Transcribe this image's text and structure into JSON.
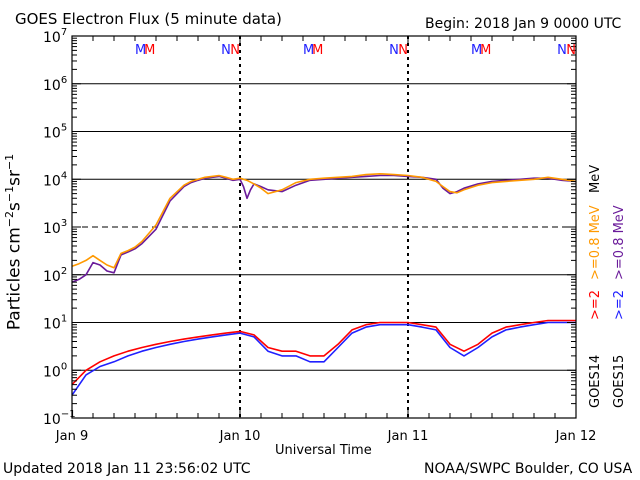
{
  "header": {
    "title": "GOES Electron Flux (5 minute data)",
    "begin": "Begin: 2018 Jan 9 0000 UTC"
  },
  "footer": {
    "updated": "Updated 2018 Jan 11 23:56:02 UTC",
    "credit": "NOAA/SWPC Boulder, CO USA"
  },
  "chart_data": {
    "type": "line",
    "title": "GOES Electron Flux (5 minute data)",
    "xlabel": "Universal Time",
    "ylabel": "Particles cm-2s-1sr-1",
    "y_scale": "log",
    "ylim": [
      0.1,
      10000000
    ],
    "y_ticks": [
      "10-1",
      "100",
      "101",
      "102",
      "103",
      "104",
      "105",
      "106",
      "107"
    ],
    "x_unit": "hours since 2018 Jan 9 0000 UTC",
    "xlim": [
      0,
      72
    ],
    "x_ticks": [
      {
        "label": "Jan 9",
        "x": 0
      },
      {
        "label": "Jan 10",
        "x": 24
      },
      {
        "label": "Jan 11",
        "x": 48
      },
      {
        "label": "Jan 12",
        "x": 72
      }
    ],
    "threshold_line": 1000,
    "top_markers": [
      {
        "text": "M",
        "color": "#2020ff",
        "x": 9.8
      },
      {
        "text": "M",
        "color": "#ff0000",
        "x": 11.1
      },
      {
        "text": "N",
        "color": "#2020ff",
        "x": 22.0
      },
      {
        "text": "N",
        "color": "#ff0000",
        "x": 23.3
      },
      {
        "text": "M",
        "color": "#2020ff",
        "x": 33.8
      },
      {
        "text": "M",
        "color": "#ff0000",
        "x": 35.1
      },
      {
        "text": "N",
        "color": "#2020ff",
        "x": 46.0
      },
      {
        "text": "N",
        "color": "#ff0000",
        "x": 47.3
      },
      {
        "text": "M",
        "color": "#2020ff",
        "x": 57.8
      },
      {
        "text": "M",
        "color": "#ff0000",
        "x": 59.1
      },
      {
        "text": "N",
        "color": "#2020ff",
        "x": 70.0
      },
      {
        "text": "N",
        "color": "#ff0000",
        "x": 71.3
      }
    ],
    "series": [
      {
        "name": "GOES15 >=0.8 MeV",
        "color": "#6a1b9a",
        "x": [
          0,
          1,
          2,
          3,
          4,
          5,
          6,
          7,
          8,
          9,
          10,
          12,
          14,
          16,
          17,
          18,
          19,
          20,
          21,
          22,
          23,
          24,
          24.5,
          25,
          25.5,
          26,
          26.5,
          27,
          28,
          30,
          32,
          34,
          36,
          38,
          40,
          42,
          44,
          46,
          48,
          50,
          52,
          53,
          54,
          55,
          56,
          58,
          60,
          62,
          64,
          66,
          68,
          70,
          72
        ],
        "y": [
          70,
          80,
          100,
          180,
          160,
          120,
          110,
          260,
          300,
          350,
          450,
          900,
          3500,
          7000,
          8500,
          9500,
          10500,
          11000,
          11500,
          10500,
          9500,
          10000,
          7000,
          4000,
          6000,
          8000,
          7500,
          7000,
          6000,
          5500,
          7500,
          9500,
          10000,
          10500,
          11000,
          11500,
          12000,
          12000,
          11500,
          11000,
          10000,
          6500,
          5000,
          5500,
          6500,
          8000,
          9000,
          9500,
          10000,
          10500,
          10500,
          9500,
          9000
        ]
      },
      {
        "name": "GOES14 >=0.8 MeV",
        "color": "#ff9900",
        "x": [
          0,
          1,
          2,
          3,
          4,
          5,
          6,
          7,
          8,
          9,
          10,
          12,
          14,
          16,
          17,
          18,
          19,
          20,
          21,
          22,
          23,
          24,
          25,
          26,
          27,
          28,
          30,
          32,
          34,
          36,
          38,
          40,
          42,
          44,
          46,
          48,
          50,
          52,
          53,
          54,
          55,
          56,
          58,
          60,
          62,
          64,
          66,
          68,
          70,
          72
        ],
        "y": [
          150,
          170,
          200,
          250,
          200,
          160,
          140,
          280,
          320,
          380,
          500,
          1100,
          4000,
          7500,
          9000,
          10000,
          11000,
          11500,
          12000,
          11000,
          10000,
          10500,
          9500,
          8000,
          6500,
          5000,
          6000,
          8500,
          10000,
          10500,
          11000,
          11500,
          12500,
          13000,
          12500,
          12000,
          11000,
          9000,
          7000,
          5500,
          5200,
          6000,
          7500,
          8500,
          9000,
          9500,
          10000,
          11000,
          10000,
          9000
        ]
      },
      {
        "name": "GOES15 >=2 MeV",
        "color": "#2020ff",
        "x": [
          0,
          2,
          4,
          6,
          8,
          10,
          12,
          14,
          16,
          18,
          20,
          22,
          24,
          26,
          28,
          30,
          32,
          34,
          36,
          38,
          40,
          42,
          44,
          46,
          48,
          50,
          52,
          54,
          56,
          58,
          60,
          62,
          64,
          66,
          68,
          70,
          72
        ],
        "y": [
          0.3,
          0.8,
          1.2,
          1.5,
          2,
          2.5,
          3,
          3.5,
          4,
          4.5,
          5,
          5.5,
          6,
          5,
          2.5,
          2,
          2,
          1.5,
          1.5,
          3,
          6,
          8,
          9,
          9,
          9,
          8,
          7,
          3,
          2,
          3,
          5,
          7,
          8,
          9,
          10,
          10,
          10
        ]
      },
      {
        "name": "GOES14 >=2 MeV",
        "color": "#ff0000",
        "x": [
          0,
          2,
          4,
          6,
          8,
          10,
          12,
          14,
          16,
          18,
          20,
          22,
          24,
          26,
          28,
          30,
          32,
          34,
          36,
          38,
          40,
          42,
          44,
          46,
          48,
          50,
          52,
          54,
          56,
          58,
          60,
          62,
          64,
          66,
          68,
          70,
          72
        ],
        "y": [
          0.5,
          1,
          1.5,
          2,
          2.5,
          3,
          3.5,
          4,
          4.5,
          5,
          5.5,
          6,
          6.5,
          5.5,
          3,
          2.5,
          2.5,
          2,
          2,
          3.5,
          7,
          9,
          10,
          10,
          10,
          9,
          8,
          3.5,
          2.5,
          3.5,
          6,
          8,
          9,
          10,
          11,
          11,
          11
        ]
      }
    ],
    "legend": {
      "placement": "right, vertical",
      "entries": [
        {
          "text": ">=0.8 MeV",
          "color": "#ff9900"
        },
        {
          "text": ">=0.8 MeV",
          "color": "#6a1b9a"
        },
        {
          "text": ">=2",
          "color": "#ff0000"
        },
        {
          "text": ">=2",
          "color": "#2020ff"
        },
        {
          "text": "MeV",
          "color": "#000000"
        },
        {
          "text": "GOES14",
          "color": "#000000"
        },
        {
          "text": "GOES15",
          "color": "#000000"
        }
      ]
    }
  }
}
